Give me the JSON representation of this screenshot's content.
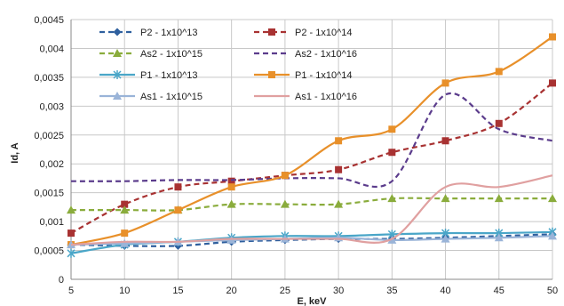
{
  "chart_data": {
    "type": "line",
    "title": "",
    "xlabel": "E, keV",
    "ylabel": "Id, A",
    "x": [
      5,
      10,
      15,
      20,
      25,
      30,
      35,
      40,
      45,
      50
    ],
    "x_ticks": [
      "5",
      "10",
      "15",
      "20",
      "25",
      "30",
      "35",
      "40",
      "45",
      "50"
    ],
    "xlim": [
      5,
      50
    ],
    "ylim": [
      0,
      0.0045
    ],
    "y_ticks": [
      "0",
      "0,0005",
      "0,001",
      "0,0015",
      "0,002",
      "0,0025",
      "0,003",
      "0,0035",
      "0,004",
      "0,0045"
    ],
    "grid": true,
    "legend_position": "top-inside",
    "series": [
      {
        "name": "P2 - 1x10^13",
        "color": "#2e5f9e",
        "dash": "6,4",
        "marker": "diamond",
        "values": [
          0.0006,
          0.00058,
          0.00058,
          0.00065,
          0.00068,
          0.0007,
          0.0007,
          0.00072,
          0.00075,
          0.00078
        ]
      },
      {
        "name": "P2 - 1x10^14",
        "color": "#a83232",
        "dash": "6,4",
        "marker": "square",
        "values": [
          0.0008,
          0.0013,
          0.0016,
          0.0017,
          0.0018,
          0.0019,
          0.0022,
          0.0024,
          0.0027,
          0.0034
        ]
      },
      {
        "name": "As2 - 1x10^15",
        "color": "#8aac3c",
        "dash": "6,4",
        "marker": "triangle",
        "values": [
          0.0012,
          0.0012,
          0.0012,
          0.0013,
          0.0013,
          0.0013,
          0.0014,
          0.0014,
          0.0014,
          0.0014
        ]
      },
      {
        "name": "As2 - 1x10^16",
        "color": "#5b3c8c",
        "dash": "6,4",
        "marker": "none",
        "values": [
          0.0017,
          0.0017,
          0.00172,
          0.00172,
          0.00175,
          0.00175,
          0.0017,
          0.0032,
          0.0026,
          0.0024
        ]
      },
      {
        "name": "P1 - 1x10^13",
        "color": "#4aa6c8",
        "dash": "",
        "marker": "star",
        "values": [
          0.00045,
          0.0006,
          0.00065,
          0.00072,
          0.00075,
          0.00075,
          0.00078,
          0.0008,
          0.0008,
          0.00082
        ]
      },
      {
        "name": "P1 - 1x10^14",
        "color": "#e8902a",
        "dash": "",
        "marker": "square",
        "values": [
          0.0006,
          0.0008,
          0.0012,
          0.0016,
          0.0018,
          0.0024,
          0.0026,
          0.0034,
          0.0036,
          0.0042
        ]
      },
      {
        "name": "As1 - 1x10^15",
        "color": "#9ab4d8",
        "dash": "",
        "marker": "triangle",
        "values": [
          0.0006,
          0.00062,
          0.00065,
          0.00068,
          0.0007,
          0.00072,
          0.00068,
          0.0007,
          0.00072,
          0.00075
        ]
      },
      {
        "name": "As1 - 1x10^16",
        "color": "#e0a0a0",
        "dash": "",
        "marker": "none",
        "values": [
          0.0006,
          0.00065,
          0.00065,
          0.0007,
          0.0007,
          0.0007,
          0.0007,
          0.0016,
          0.0016,
          0.0018
        ]
      }
    ]
  }
}
